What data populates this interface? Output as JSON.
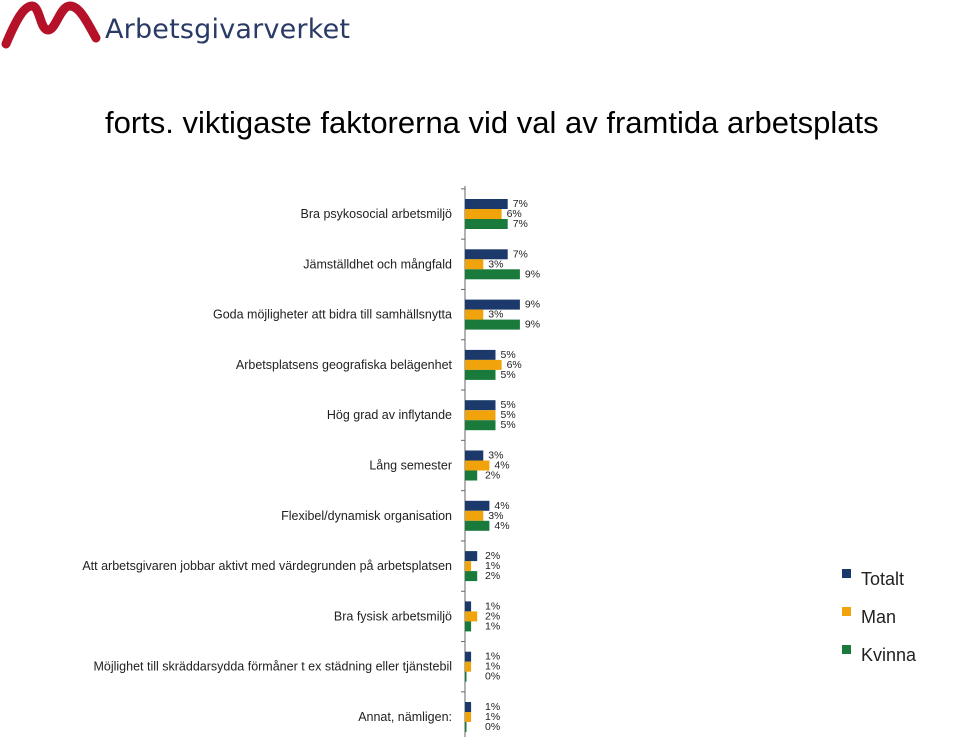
{
  "header": {
    "logo_text": "Arbetsgivarverket",
    "title": "forts. viktigaste faktorerna vid val av framtida arbetsplats"
  },
  "colors": {
    "Totalt": "#1b3a6b",
    "Man": "#f0a30a",
    "Kvinna": "#1a7a3c",
    "brand": "#b5122a"
  },
  "legend": [
    {
      "label": "Totalt",
      "color": "#1b3a6b"
    },
    {
      "label": "Man",
      "color": "#f0a30a"
    },
    {
      "label": "Kvinna",
      "color": "#1a7a3c"
    }
  ],
  "chart_data": {
    "type": "bar",
    "orientation": "horizontal",
    "categories": [
      "Bra psykosocial arbetsmiljö",
      "Jämställdhet och mångfald",
      "Goda möjligheter att bidra till samhällsnytta",
      "Arbetsplatsens geografiska belägenhet",
      "Hög grad av inflytande",
      "Lång semester",
      "Flexibel/dynamisk organisation",
      "Att arbetsgivaren jobbar aktivt med värdegrunden på arbetsplatsen",
      "Bra fysisk arbetsmiljö",
      "Möjlighet till skräddarsydda förmåner t ex städning eller tjänstebil",
      "Annat, nämligen:"
    ],
    "series": [
      {
        "name": "Totalt",
        "values": [
          7,
          7,
          9,
          5,
          5,
          3,
          4,
          2,
          1,
          1,
          1
        ],
        "labels": [
          "7%",
          "7%",
          "9%",
          "5%",
          "5%",
          "3%",
          "4%",
          "2%",
          "1%",
          "1%",
          "1%"
        ]
      },
      {
        "name": "Man",
        "values": [
          6,
          3,
          3,
          6,
          5,
          4,
          3,
          1,
          2,
          1,
          1
        ],
        "labels": [
          "6%",
          "3%",
          "3%",
          "6%",
          "5%",
          "4%",
          "3%",
          "1%",
          "2%",
          "1%",
          "1%"
        ]
      },
      {
        "name": "Kvinna",
        "values": [
          7,
          9,
          9,
          5,
          5,
          2,
          4,
          2,
          1,
          0,
          0
        ],
        "labels": [
          "7%",
          "9%",
          "9%",
          "5%",
          "5%",
          "2%",
          "4%",
          "2%",
          "1%",
          "0%",
          "0%"
        ]
      }
    ],
    "xlim": [
      0,
      100
    ],
    "unit": "%",
    "legend_position": "right",
    "grid": false
  }
}
